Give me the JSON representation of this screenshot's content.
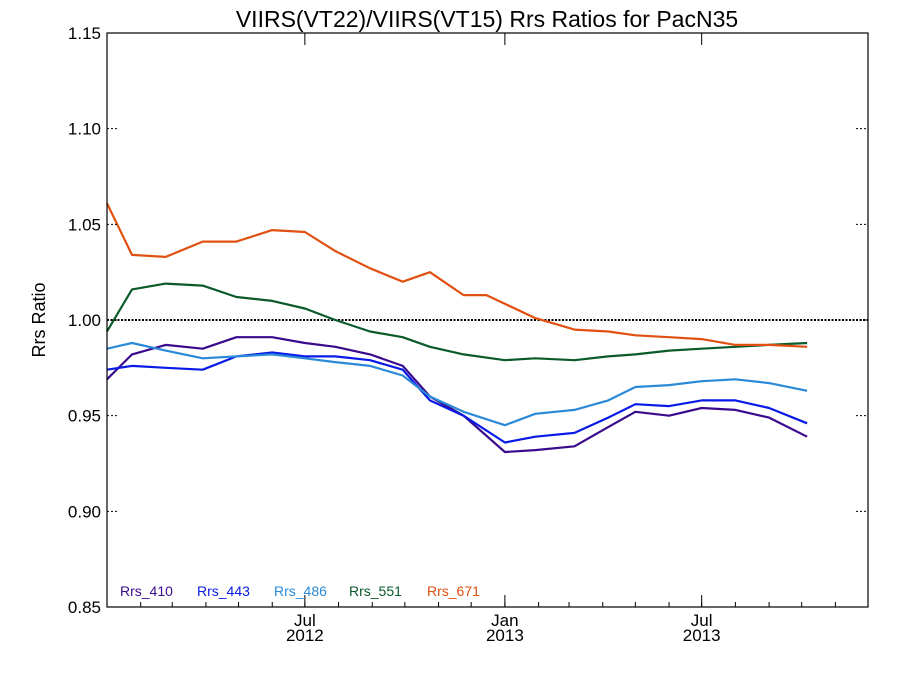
{
  "chart_data": {
    "type": "line",
    "title": "VIIRS(VT22)/VIIRS(VT15)  Rrs Ratios for PacN35",
    "xlabel": "",
    "ylabel": "Rrs Ratio",
    "xlim": [
      "2012-01-01",
      "2013-12-01"
    ],
    "ylim": [
      0.85,
      1.15
    ],
    "yticks": [
      {
        "value": 0.85,
        "label": "0.85"
      },
      {
        "value": 0.9,
        "label": "0.90"
      },
      {
        "value": 0.95,
        "label": "0.95"
      },
      {
        "value": 1.0,
        "label": "1.00"
      },
      {
        "value": 1.05,
        "label": "1.05"
      },
      {
        "value": 1.1,
        "label": "1.10"
      },
      {
        "value": 1.15,
        "label": "1.15"
      }
    ],
    "xticks": [
      {
        "date": "2012-07-01",
        "month": "Jul",
        "year": "2012"
      },
      {
        "date": "2013-01-01",
        "month": "Jan",
        "year": "2013"
      },
      {
        "date": "2013-07-01",
        "month": "Jul",
        "year": "2013"
      }
    ],
    "reference_line": 1.0,
    "legend_position": "bottom-left",
    "series": [
      {
        "name": "Rrs_410",
        "color": "#3a0a8c",
        "points": [
          [
            "2012-01-01",
            0.969
          ],
          [
            "2012-01-24",
            0.982
          ],
          [
            "2012-02-24",
            0.987
          ],
          [
            "2012-03-29",
            0.985
          ],
          [
            "2012-04-29",
            0.991
          ],
          [
            "2012-06-01",
            0.991
          ],
          [
            "2012-07-01",
            0.988
          ],
          [
            "2012-07-29",
            0.986
          ],
          [
            "2012-08-30",
            0.982
          ],
          [
            "2012-09-29",
            0.976
          ],
          [
            "2012-10-24",
            0.96
          ],
          [
            "2012-11-24",
            0.95
          ],
          [
            "2013-01-01",
            0.931
          ],
          [
            "2013-01-29",
            0.932
          ],
          [
            "2013-03-06",
            0.934
          ],
          [
            "2013-04-06",
            0.944
          ],
          [
            "2013-05-01",
            0.952
          ],
          [
            "2013-06-01",
            0.95
          ],
          [
            "2013-07-01",
            0.954
          ],
          [
            "2013-08-01",
            0.953
          ],
          [
            "2013-09-01",
            0.949
          ],
          [
            "2013-10-06",
            0.939
          ]
        ]
      },
      {
        "name": "Rrs_443",
        "color": "#0a1ae6",
        "points": [
          [
            "2012-01-01",
            0.974
          ],
          [
            "2012-01-24",
            0.976
          ],
          [
            "2012-02-24",
            0.975
          ],
          [
            "2012-03-29",
            0.974
          ],
          [
            "2012-04-29",
            0.981
          ],
          [
            "2012-06-01",
            0.983
          ],
          [
            "2012-07-01",
            0.981
          ],
          [
            "2012-07-29",
            0.981
          ],
          [
            "2012-08-30",
            0.979
          ],
          [
            "2012-09-29",
            0.974
          ],
          [
            "2012-10-24",
            0.958
          ],
          [
            "2012-11-24",
            0.95
          ],
          [
            "2013-01-01",
            0.936
          ],
          [
            "2013-01-29",
            0.939
          ],
          [
            "2013-03-06",
            0.941
          ],
          [
            "2013-04-06",
            0.949
          ],
          [
            "2013-05-01",
            0.956
          ],
          [
            "2013-06-01",
            0.955
          ],
          [
            "2013-07-01",
            0.958
          ],
          [
            "2013-08-01",
            0.958
          ],
          [
            "2013-09-01",
            0.954
          ],
          [
            "2013-10-06",
            0.946
          ]
        ]
      },
      {
        "name": "Rrs_486",
        "color": "#2a8ad8",
        "points": [
          [
            "2012-01-01",
            0.985
          ],
          [
            "2012-01-24",
            0.988
          ],
          [
            "2012-02-24",
            0.984
          ],
          [
            "2012-03-29",
            0.98
          ],
          [
            "2012-04-29",
            0.981
          ],
          [
            "2012-06-01",
            0.982
          ],
          [
            "2012-07-01",
            0.98
          ],
          [
            "2012-07-29",
            0.978
          ],
          [
            "2012-08-30",
            0.976
          ],
          [
            "2012-09-29",
            0.971
          ],
          [
            "2012-10-24",
            0.96
          ],
          [
            "2012-11-24",
            0.952
          ],
          [
            "2013-01-01",
            0.945
          ],
          [
            "2013-01-29",
            0.951
          ],
          [
            "2013-03-06",
            0.953
          ],
          [
            "2013-04-06",
            0.958
          ],
          [
            "2013-05-01",
            0.965
          ],
          [
            "2013-06-01",
            0.966
          ],
          [
            "2013-07-01",
            0.968
          ],
          [
            "2013-08-01",
            0.969
          ],
          [
            "2013-09-01",
            0.967
          ],
          [
            "2013-10-06",
            0.963
          ]
        ]
      },
      {
        "name": "Rrs_551",
        "color": "#0a5a2a",
        "points": [
          [
            "2012-01-01",
            0.994
          ],
          [
            "2012-01-24",
            1.016
          ],
          [
            "2012-02-24",
            1.019
          ],
          [
            "2012-03-29",
            1.018
          ],
          [
            "2012-04-29",
            1.012
          ],
          [
            "2012-06-01",
            1.01
          ],
          [
            "2012-07-01",
            1.006
          ],
          [
            "2012-07-29",
            1.0
          ],
          [
            "2012-08-30",
            0.994
          ],
          [
            "2012-09-29",
            0.991
          ],
          [
            "2012-10-24",
            0.986
          ],
          [
            "2012-11-24",
            0.982
          ],
          [
            "2013-01-01",
            0.979
          ],
          [
            "2013-01-29",
            0.98
          ],
          [
            "2013-03-06",
            0.979
          ],
          [
            "2013-04-06",
            0.981
          ],
          [
            "2013-05-01",
            0.982
          ],
          [
            "2013-06-01",
            0.984
          ],
          [
            "2013-07-01",
            0.985
          ],
          [
            "2013-08-01",
            0.986
          ],
          [
            "2013-09-01",
            0.987
          ],
          [
            "2013-10-06",
            0.988
          ]
        ]
      },
      {
        "name": "Rrs_671",
        "color": "#e05010",
        "points": [
          [
            "2012-01-01",
            1.061
          ],
          [
            "2012-01-24",
            1.034
          ],
          [
            "2012-02-24",
            1.033
          ],
          [
            "2012-03-29",
            1.041
          ],
          [
            "2012-04-29",
            1.041
          ],
          [
            "2012-06-01",
            1.047
          ],
          [
            "2012-07-01",
            1.046
          ],
          [
            "2012-07-29",
            1.036
          ],
          [
            "2012-08-30",
            1.027
          ],
          [
            "2012-09-29",
            1.02
          ],
          [
            "2012-10-24",
            1.025
          ],
          [
            "2012-11-24",
            1.013
          ],
          [
            "2012-12-15",
            1.013
          ],
          [
            "2013-01-29",
            1.001
          ],
          [
            "2013-03-06",
            0.995
          ],
          [
            "2013-04-06",
            0.994
          ],
          [
            "2013-05-01",
            0.992
          ],
          [
            "2013-06-01",
            0.991
          ],
          [
            "2013-07-01",
            0.99
          ],
          [
            "2013-08-01",
            0.987
          ],
          [
            "2013-09-01",
            0.987
          ],
          [
            "2013-10-06",
            0.986
          ]
        ]
      }
    ]
  }
}
